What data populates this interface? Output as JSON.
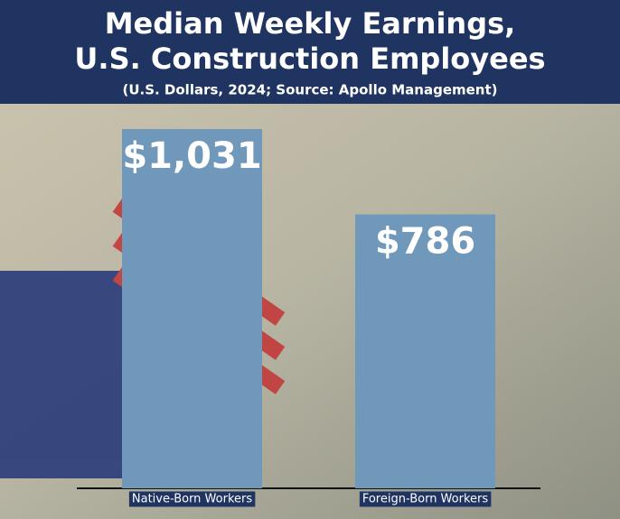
{
  "chart_data": {
    "type": "bar",
    "title": [
      "Median Weekly Earnings,",
      "U.S. Construction Employees"
    ],
    "subtitle": "(U.S. Dollars, 2024; Source: Apollo Management)",
    "categories": [
      "Native-Born Workers",
      "Foreign-Born Workers"
    ],
    "values": [
      1031,
      786
    ],
    "value_labels": [
      "$1,031",
      "$786"
    ],
    "color": "#6f98ba"
  }
}
